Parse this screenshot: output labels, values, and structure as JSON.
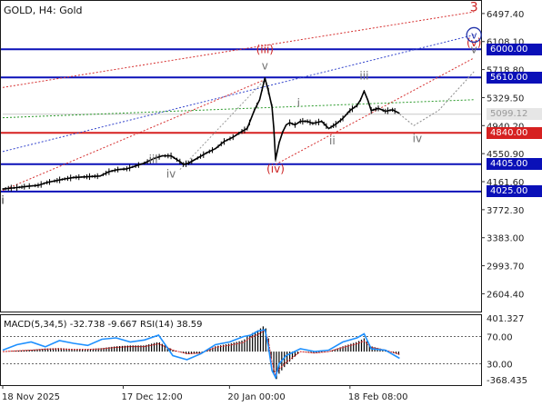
{
  "chart_data": [
    {
      "type": "candlestick",
      "title": "GOLD, H4:  Gold",
      "y_ticks": [
        6497.4,
        6108.1,
        5718.8,
        5329.5,
        4940.2,
        4550.9,
        4161.6,
        3772.3,
        3383.0,
        2993.7,
        2604.4
      ],
      "y_tick_labels": [
        "6497.40",
        "6108.10",
        "5718.80",
        "5329.50",
        "4940.20",
        "4550.90",
        "4161.60",
        "3772.30",
        "3383.00",
        "2993.70",
        "2604.40"
      ],
      "ylim": [
        2370,
        6660
      ],
      "x_tick_labels": [
        "18 Nov 2025",
        "17 Dec 12:00",
        "20 Jan 00:00",
        "18 Feb 08:00"
      ],
      "price_path": [
        [
          0,
          4060
        ],
        [
          8,
          4080
        ],
        [
          15,
          4100
        ],
        [
          20,
          4110
        ],
        [
          25,
          4150
        ],
        [
          35,
          4200
        ],
        [
          40,
          4220
        ],
        [
          55,
          4240
        ],
        [
          60,
          4300
        ],
        [
          65,
          4330
        ],
        [
          70,
          4340
        ],
        [
          75,
          4380
        ],
        [
          80,
          4420
        ],
        [
          85,
          4480
        ],
        [
          90,
          4520
        ],
        [
          95,
          4520
        ],
        [
          100,
          4440
        ],
        [
          102,
          4400
        ],
        [
          105,
          4420
        ],
        [
          110,
          4490
        ],
        [
          115,
          4560
        ],
        [
          120,
          4620
        ],
        [
          125,
          4720
        ],
        [
          130,
          4780
        ],
        [
          135,
          4860
        ],
        [
          138,
          4900
        ],
        [
          142,
          5150
        ],
        [
          145,
          5300
        ],
        [
          148,
          5600
        ],
        [
          150,
          5420
        ],
        [
          152,
          5200
        ],
        [
          153,
          4900
        ],
        [
          154,
          4470
        ],
        [
          156,
          4700
        ],
        [
          158,
          4850
        ],
        [
          160,
          4950
        ],
        [
          162,
          4980
        ],
        [
          165,
          4950
        ],
        [
          168,
          5000
        ],
        [
          172,
          5000
        ],
        [
          175,
          4970
        ],
        [
          180,
          5000
        ],
        [
          184,
          4900
        ],
        [
          188,
          4960
        ],
        [
          192,
          5040
        ],
        [
          196,
          5150
        ],
        [
          200,
          5220
        ],
        [
          202,
          5300
        ],
        [
          204,
          5420
        ],
        [
          206,
          5300
        ],
        [
          208,
          5150
        ],
        [
          212,
          5180
        ],
        [
          216,
          5140
        ],
        [
          220,
          5160
        ],
        [
          224,
          5110
        ]
      ],
      "wave_labels": [
        {
          "text": "i",
          "price": 3850,
          "t": 0,
          "color": "#222222"
        },
        {
          "text": "iii",
          "price": 4420,
          "t": 85,
          "color": "#707070"
        },
        {
          "text": "iv",
          "price": 4220,
          "t": 95,
          "color": "#707070"
        },
        {
          "text": "v",
          "price": 5720,
          "t": 148,
          "color": "#707070"
        },
        {
          "text": "(iii)",
          "price": 5950,
          "t": 148,
          "color": "#cc2222"
        },
        {
          "text": "(iv)",
          "price": 4285,
          "t": 154,
          "color": "#cc2222"
        },
        {
          "text": "i",
          "price": 5200,
          "t": 167,
          "color": "#707070"
        },
        {
          "text": "ii",
          "price": 4680,
          "t": 186,
          "color": "#707070"
        },
        {
          "text": "iii",
          "price": 5580,
          "t": 204,
          "color": "#707070"
        },
        {
          "text": "iv",
          "price": 4710,
          "t": 234,
          "color": "#707070"
        },
        {
          "text": "v",
          "price": 5950,
          "t": 266,
          "color": "#707070"
        },
        {
          "text": "(v)",
          "price": 6040,
          "t": 266,
          "color": "#cc2222"
        },
        {
          "text": "3",
          "price": 6530,
          "t": 266,
          "color": "#cc2222"
        }
      ],
      "circled_label": {
        "text": "v",
        "price": 6200,
        "t": 266,
        "color": "#2233aa"
      },
      "forecast_path": [
        [
          224,
          5100
        ],
        [
          232,
          4940
        ],
        [
          246,
          5150
        ],
        [
          266,
          5690
        ]
      ],
      "horizontal_levels": [
        {
          "price": 6000.0,
          "label": "6000.00",
          "color": "#0a10b8"
        },
        {
          "price": 5610.0,
          "label": "5610.00",
          "color": "#0a10b8"
        },
        {
          "price": 4840.0,
          "label": "4840.00",
          "color": "#d62020"
        },
        {
          "price": 4405.0,
          "label": "4405.00",
          "color": "#0a10b8"
        },
        {
          "price": 4025.0,
          "label": "4025.00",
          "color": "#0a10b8"
        }
      ],
      "current_price": {
        "label": "5099.12",
        "price": 5099.12
      },
      "trend_lines": [
        {
          "from": [
            0,
            5470
          ],
          "to": [
            266,
            6520
          ],
          "color": "#d63030"
        },
        {
          "from": [
            0,
            4580
          ],
          "to": [
            266,
            6200
          ],
          "color": "#3344cc"
        },
        {
          "from": [
            0,
            4040
          ],
          "to": [
            148,
            5580
          ],
          "color": "#d63030"
        },
        {
          "from": [
            154,
            4400
          ],
          "to": [
            266,
            5880
          ],
          "color": "#d63030"
        },
        {
          "from": [
            100,
            4330
          ],
          "to": [
            148,
            5580
          ],
          "color": "#9a9a9a"
        },
        {
          "from": [
            0,
            5050
          ],
          "to": [
            266,
            5300
          ],
          "color": "#2a9a2a"
        }
      ]
    },
    {
      "type": "bar+line",
      "title": "MACD(5,34,5) -32.738 -9.667 RSI(14) 38.59",
      "y_tick_labels": [
        "401.327",
        "70.00",
        "30.00",
        "-368.435"
      ],
      "histogram_ylim": [
        -368.435,
        401.327
      ],
      "rsi_ylim": [
        0,
        100
      ],
      "rsi_levels": [
        70,
        30
      ],
      "x": [
        0,
        8,
        16,
        24,
        32,
        40,
        48,
        56,
        64,
        72,
        80,
        88,
        96,
        104,
        112,
        120,
        128,
        136,
        140,
        144,
        148,
        150,
        152,
        154,
        156,
        160,
        168,
        176,
        184,
        192,
        200,
        204,
        208,
        216,
        224
      ],
      "macd_histogram": [
        0,
        10,
        20,
        35,
        40,
        30,
        30,
        40,
        60,
        70,
        70,
        110,
        20,
        -30,
        -20,
        60,
        90,
        130,
        200,
        240,
        300,
        150,
        -150,
        -330,
        -250,
        -150,
        0,
        -20,
        0,
        60,
        110,
        150,
        60,
        20,
        -40
      ],
      "rsi": [
        50,
        58,
        62,
        55,
        64,
        60,
        57,
        66,
        68,
        62,
        65,
        72,
        42,
        36,
        45,
        58,
        62,
        70,
        72,
        78,
        80,
        55,
        20,
        10,
        30,
        42,
        52,
        48,
        50,
        62,
        68,
        74,
        52,
        50,
        38
      ]
    }
  ]
}
